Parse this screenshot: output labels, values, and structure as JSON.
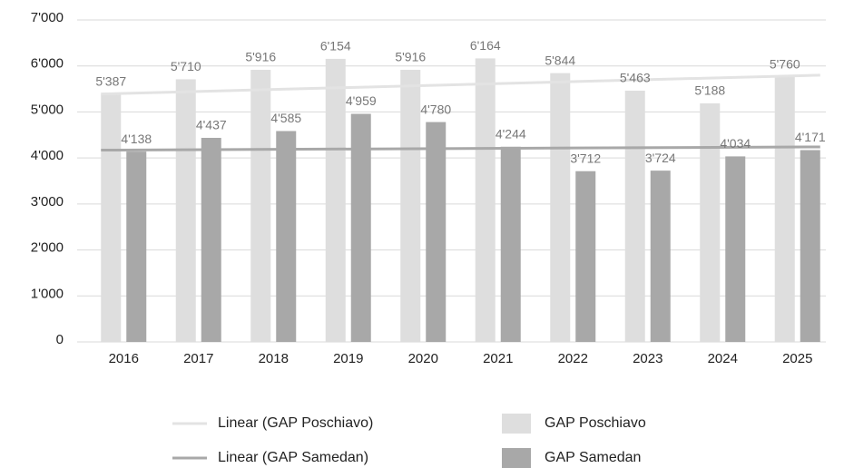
{
  "chart_data": {
    "type": "bar",
    "categories": [
      "2016",
      "2017",
      "2018",
      "2019",
      "2020",
      "2021",
      "2022",
      "2023",
      "2024",
      "2025"
    ],
    "series": [
      {
        "name": "GAP Poschiavo",
        "color": "#dedede",
        "values": [
          5387,
          5710,
          5916,
          6154,
          5916,
          6164,
          5844,
          5463,
          5188,
          5760
        ],
        "value_labels": [
          "5'387",
          "5'710",
          "5'916",
          "6'154",
          "5'916",
          "6'164",
          "5'844",
          "5'463",
          "5'188",
          "5'760"
        ],
        "trendline": {
          "name": "Linear (GAP Poschiavo)",
          "color": "#e3e3e3",
          "values": [
            5390,
            5800
          ]
        }
      },
      {
        "name": "GAP Samedan",
        "color": "#a8a8a8",
        "values": [
          4138,
          4437,
          4585,
          4959,
          4780,
          4244,
          3712,
          3724,
          4034,
          4171
        ],
        "value_labels": [
          "4'138",
          "4'437",
          "4'585",
          "4'959",
          "4'780",
          "4'244",
          "3'712",
          "3'724",
          "4'034",
          "4'171"
        ],
        "trendline": {
          "name": "Linear (GAP Samedan)",
          "color": "#a8a8a8",
          "values": [
            4170,
            4240
          ]
        }
      }
    ],
    "ylim": [
      0,
      7000
    ],
    "yticks": [
      0,
      {
        "value": 1000,
        "label": "1'000"
      },
      {
        "value": 2000,
        "label": "2'000"
      },
      {
        "value": 3000,
        "label": "3'000"
      },
      {
        "value": 4000,
        "label": "4'000"
      },
      {
        "value": 5000,
        "label": "5'000"
      },
      {
        "value": 6000,
        "label": "6'000"
      },
      {
        "value": 7000,
        "label": "7'000"
      }
    ],
    "grid": true
  }
}
